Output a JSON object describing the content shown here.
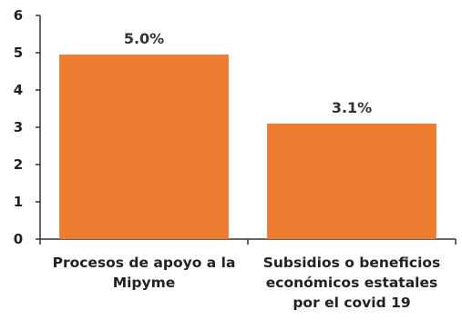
{
  "chart_data": {
    "type": "bar",
    "categories": [
      [
        "Procesos de apoyo a la",
        "Mipyme"
      ],
      [
        "Subsidios o beneficios",
        "económicos estatales",
        "por el covid 19"
      ]
    ],
    "values": [
      4.95,
      3.1
    ],
    "data_labels": [
      "5.0%",
      "3.1%"
    ],
    "y_ticks": [
      "0",
      "1",
      "2",
      "3",
      "4",
      "5",
      "6"
    ],
    "ylim": [
      0,
      6
    ],
    "grid": false,
    "bar_color": "#ED7D31",
    "axis_color": "#333333"
  }
}
